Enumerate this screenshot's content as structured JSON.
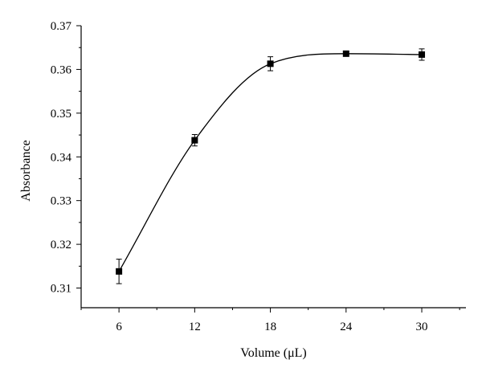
{
  "chart_data": {
    "type": "line",
    "title": "",
    "xlabel": "Volume (μL)",
    "ylabel": "Absorbance",
    "x": [
      6,
      12,
      18,
      24,
      30
    ],
    "series": [
      {
        "values": [
          0.3138,
          0.3438,
          0.3613,
          0.3636,
          0.3634
        ],
        "error": [
          0.0028,
          0.0013,
          0.0016,
          0.0005,
          0.0013
        ],
        "marker": "square"
      }
    ],
    "xlim": [
      3,
      33.5
    ],
    "ylim": [
      0.3055,
      0.37
    ],
    "xticks": [
      "6",
      "12",
      "18",
      "24",
      "30"
    ],
    "yticks": [
      "0.31",
      "0.32",
      "0.33",
      "0.34",
      "0.35",
      "0.36",
      "0.37"
    ],
    "grid": false,
    "legend": "none"
  }
}
